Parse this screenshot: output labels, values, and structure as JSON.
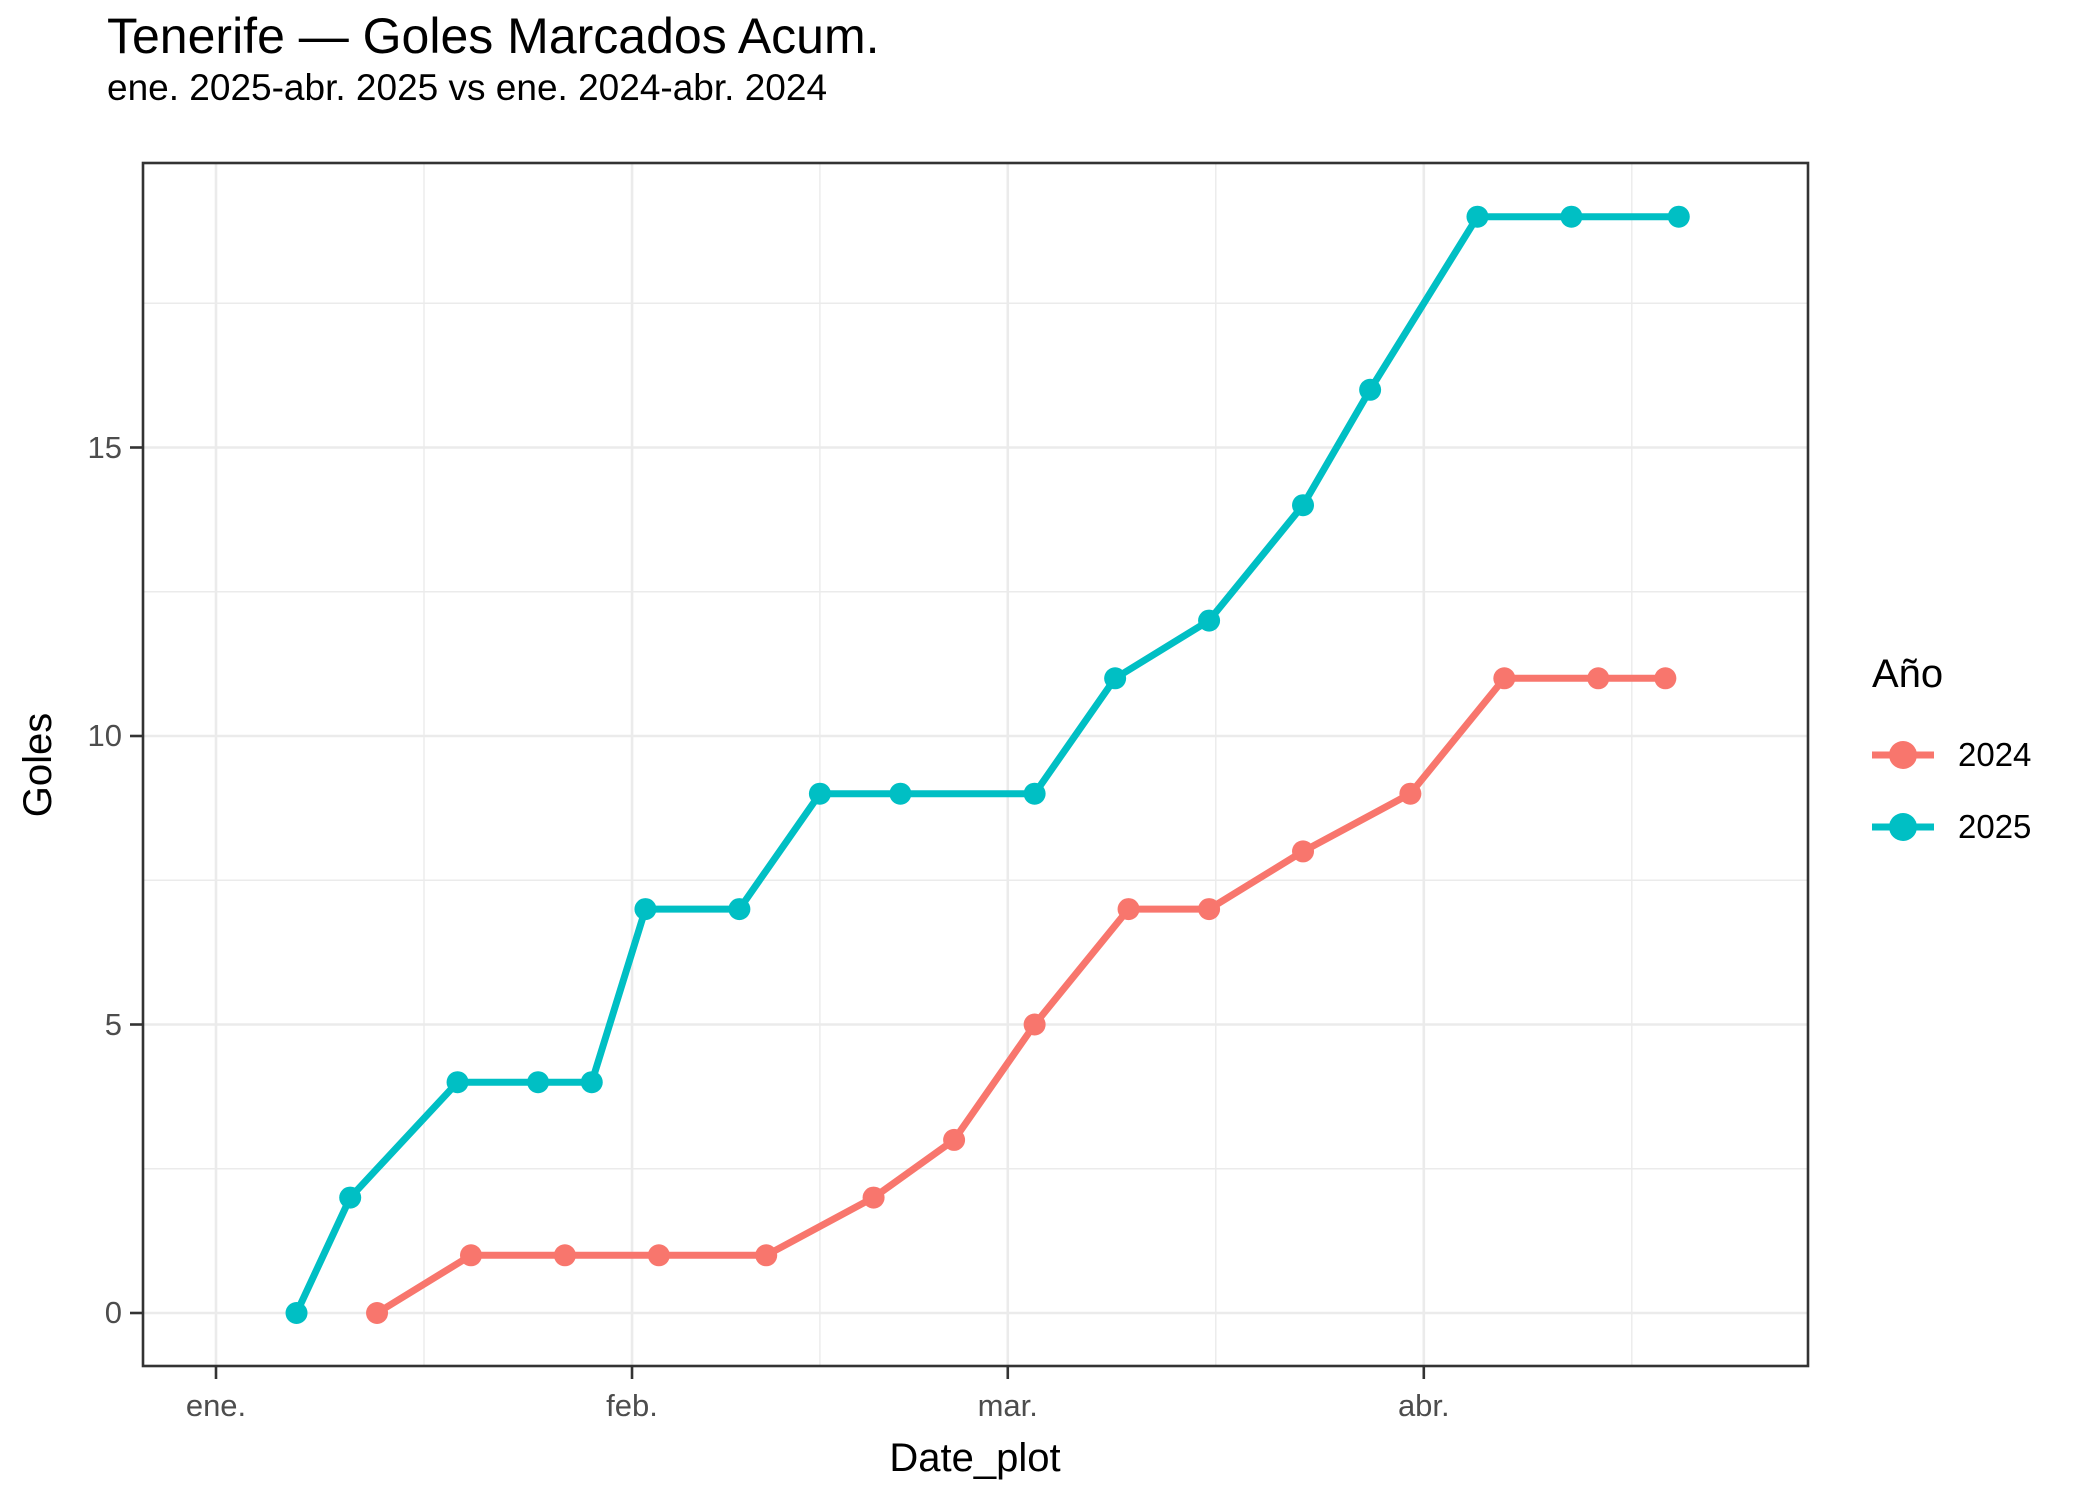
{
  "legend": {
    "title": "Año",
    "position": "right",
    "items": [
      {
        "label": "2024",
        "color": "#F8766D"
      },
      {
        "label": "2025",
        "color": "#00BFC4"
      }
    ]
  },
  "chart_data": {
    "type": "line",
    "title": "Tenerife — Goles Marcados Acum.",
    "subtitle": "ene. 2025-abr. 2025 vs ene. 2024-abr. 2024",
    "xlabel": "Date_plot",
    "ylabel": "Goles",
    "grid": true,
    "legend_position": "right",
    "x_units": "days_from_jan1",
    "x_axis": {
      "tick_labels": [
        "ene.",
        "feb.",
        "mar.",
        "abr."
      ],
      "tick_days": [
        0,
        31,
        59,
        90
      ],
      "minor_days": [
        15.5,
        45,
        74.5,
        105.5
      ],
      "domain_days": [
        -5.4,
        118.6
      ]
    },
    "y_axis": {
      "ticks": [
        0,
        5,
        10,
        15
      ],
      "minor": [
        2.5,
        7.5,
        12.5,
        17.5
      ],
      "domain": [
        -0.92,
        19.97
      ]
    },
    "style": {
      "grid_color": "#EBEBEB",
      "border_color": "#333333",
      "tick_color": "#333333",
      "tick_label_color": "#4D4D4D",
      "line_width": 7,
      "point_radius": 11
    },
    "series": [
      {
        "name": "2024",
        "color": "#F8766D",
        "points": [
          {
            "day": 12,
            "value": 0
          },
          {
            "day": 19,
            "value": 1
          },
          {
            "day": 26,
            "value": 1
          },
          {
            "day": 33,
            "value": 1
          },
          {
            "day": 41,
            "value": 1
          },
          {
            "day": 49,
            "value": 2
          },
          {
            "day": 55,
            "value": 3
          },
          {
            "day": 61,
            "value": 5
          },
          {
            "day": 68,
            "value": 7
          },
          {
            "day": 74,
            "value": 7
          },
          {
            "day": 81,
            "value": 8
          },
          {
            "day": 89,
            "value": 9
          },
          {
            "day": 96,
            "value": 11
          },
          {
            "day": 103,
            "value": 11
          },
          {
            "day": 108,
            "value": 11
          }
        ]
      },
      {
        "name": "2025",
        "color": "#00BFC4",
        "points": [
          {
            "day": 6,
            "value": 0
          },
          {
            "day": 10,
            "value": 2
          },
          {
            "day": 18,
            "value": 4
          },
          {
            "day": 24,
            "value": 4
          },
          {
            "day": 28,
            "value": 4
          },
          {
            "day": 32,
            "value": 7
          },
          {
            "day": 39,
            "value": 7
          },
          {
            "day": 45,
            "value": 9
          },
          {
            "day": 51,
            "value": 9
          },
          {
            "day": 61,
            "value": 9
          },
          {
            "day": 67,
            "value": 11
          },
          {
            "day": 74,
            "value": 12
          },
          {
            "day": 81,
            "value": 14
          },
          {
            "day": 86,
            "value": 16
          },
          {
            "day": 94,
            "value": 19
          },
          {
            "day": 101,
            "value": 19
          },
          {
            "day": 109,
            "value": 19
          }
        ]
      }
    ]
  }
}
